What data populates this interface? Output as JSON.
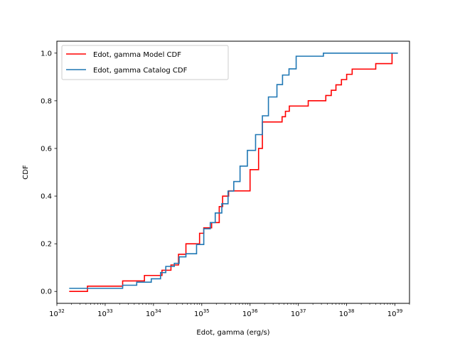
{
  "chart_data": {
    "type": "line",
    "step": "post",
    "xscale": "log",
    "xlabel": "Edot, gamma (erg/s)",
    "ylabel": "CDF",
    "xlim": [
      1e+32,
      2e+39
    ],
    "ylim": [
      -0.05,
      1.05
    ],
    "x_ticks": [
      {
        "base": "10",
        "exp": "32"
      },
      {
        "base": "10",
        "exp": "33"
      },
      {
        "base": "10",
        "exp": "34"
      },
      {
        "base": "10",
        "exp": "35"
      },
      {
        "base": "10",
        "exp": "36"
      },
      {
        "base": "10",
        "exp": "37"
      },
      {
        "base": "10",
        "exp": "38"
      },
      {
        "base": "10",
        "exp": "39"
      }
    ],
    "y_ticks": [
      "0.0",
      "0.2",
      "0.4",
      "0.6",
      "0.8",
      "1.0"
    ],
    "grid": false,
    "legend_position": "upper left",
    "series": [
      {
        "name": "Edot, gamma Model CDF",
        "color": "#ff0000",
        "x": [
          1.8e+32,
          4.3e+32,
          2.3e+33,
          6.5e+33,
          1.5e+34,
          2.3e+34,
          3.3e+34,
          4.7e+34,
          9e+34,
          1.1e+35,
          1.6e+35,
          2.3e+35,
          2.7e+35,
          3.6e+35,
          4.6e+35,
          1e+36,
          1.5e+36,
          1.8e+36,
          4.6e+36,
          5.4e+36,
          6.5e+36,
          8.7e+36,
          1.6e+37,
          3.7e+37,
          4.8e+37,
          6e+37,
          7.8e+37,
          1e+38,
          1.3e+38,
          1.6e+38,
          4e+38,
          6.2e+38,
          8.7e+38
        ],
        "y": [
          0.0,
          0.022,
          0.044,
          0.067,
          0.089,
          0.111,
          0.156,
          0.2,
          0.244,
          0.267,
          0.289,
          0.356,
          0.4,
          0.422,
          0.422,
          0.511,
          0.6,
          0.711,
          0.733,
          0.756,
          0.778,
          0.778,
          0.8,
          0.822,
          0.844,
          0.867,
          0.889,
          0.911,
          0.933,
          0.933,
          0.956,
          0.956,
          1.0
        ],
        "x_end": 8.7e+38
      },
      {
        "name": "Edot, gamma Catalog CDF",
        "color": "#1f77b4",
        "x": [
          1.8e+32,
          2.3e+33,
          4.5e+33,
          9e+33,
          1.4e+34,
          1.8e+34,
          2.7e+34,
          3.4e+34,
          4.7e+34,
          7.8e+34,
          1.1e+35,
          1.5e+35,
          1.9e+35,
          2.6e+35,
          3.5e+35,
          4.6e+35,
          6.2e+35,
          8.8e+35,
          1.3e+36,
          1.8e+36,
          2.4e+36,
          3.6e+36,
          4.7e+36,
          6.4e+36,
          9e+36,
          3.3e+37
        ],
        "y": [
          0.013,
          0.026,
          0.039,
          0.053,
          0.079,
          0.105,
          0.118,
          0.145,
          0.158,
          0.197,
          0.263,
          0.289,
          0.329,
          0.368,
          0.421,
          0.461,
          0.526,
          0.592,
          0.658,
          0.737,
          0.816,
          0.868,
          0.908,
          0.934,
          0.987,
          1.0
        ],
        "x_end": 1.15e+39
      }
    ]
  }
}
